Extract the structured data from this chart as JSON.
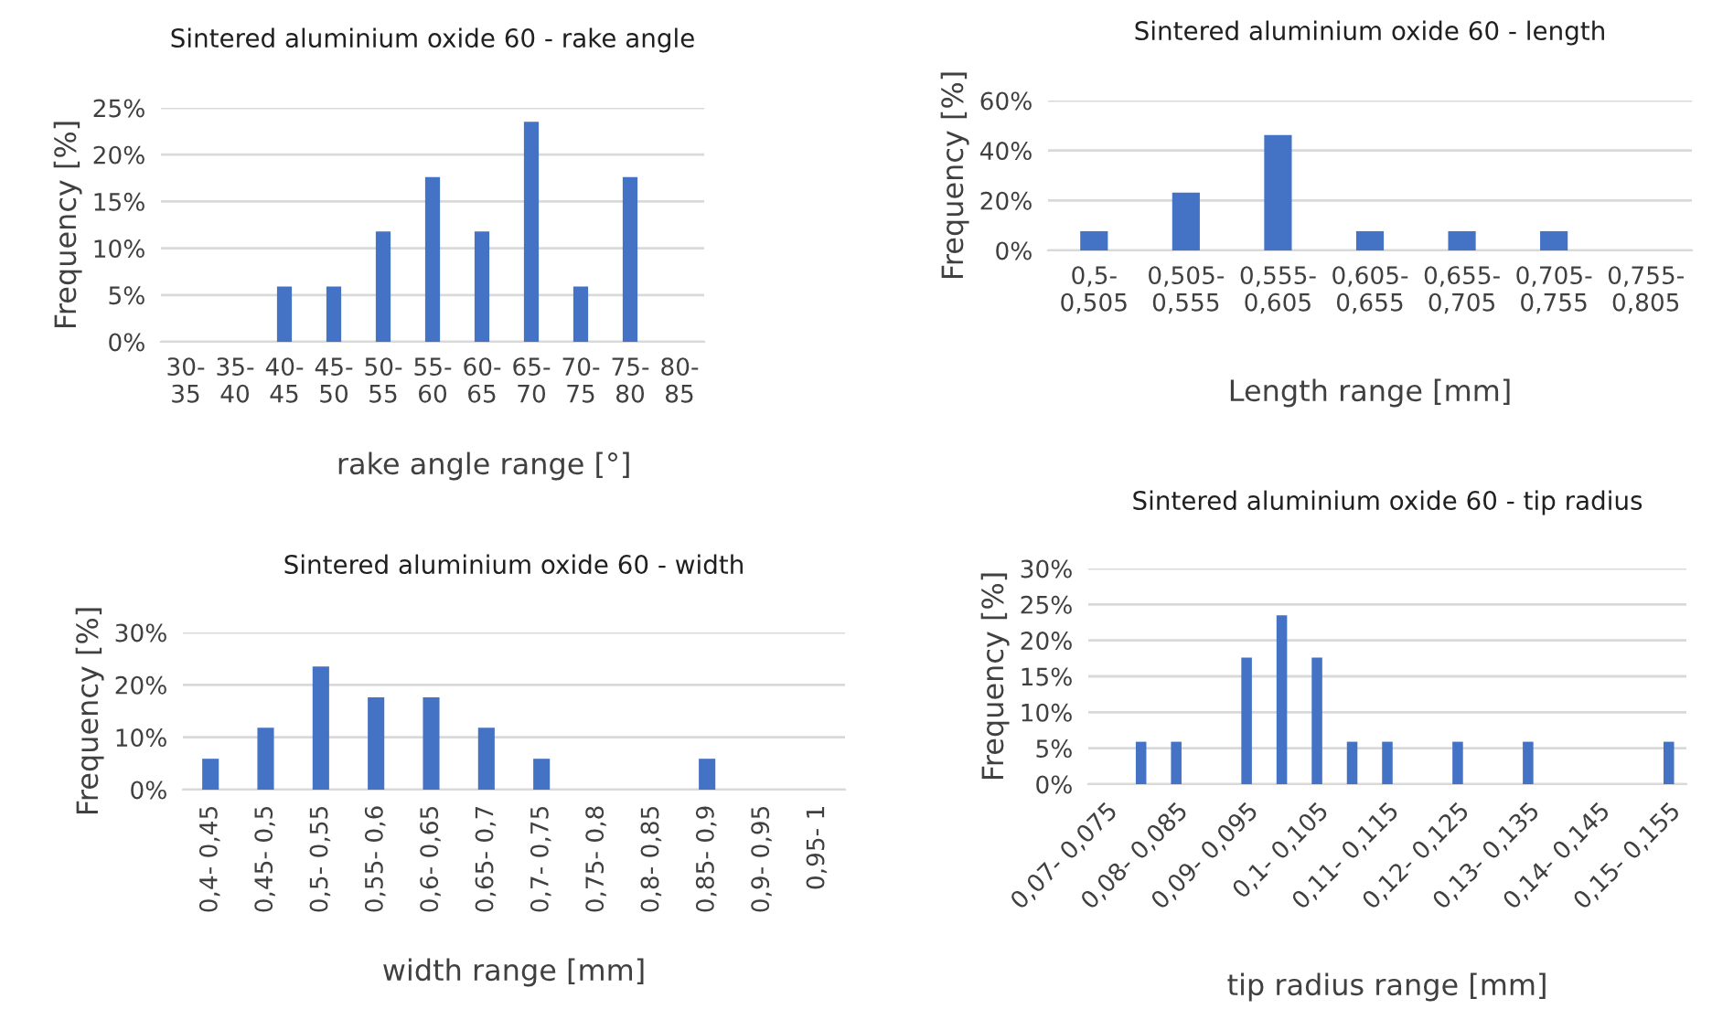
{
  "chart_data": [
    {
      "type": "bar",
      "title": "Sintered aluminium oxide 60 - rake angle",
      "xlabel": "rake angle range [°]",
      "ylabel": "Frequency [%]",
      "color": "#4472c4",
      "grid": "y",
      "categories": [
        "30-35",
        "35-40",
        "40-45",
        "45-50",
        "50-55",
        "55-60",
        "60-65",
        "65-70",
        "70-75",
        "75-80",
        "80-85"
      ],
      "values": [
        0,
        0,
        5.9,
        5.9,
        11.8,
        17.6,
        11.8,
        23.5,
        5.9,
        17.6,
        0
      ],
      "ylim": [
        0,
        25
      ],
      "yticks": [
        {
          "value": 0,
          "label": "0%"
        },
        {
          "value": 5,
          "label": "5%"
        },
        {
          "value": 10,
          "label": "10%"
        },
        {
          "value": 15,
          "label": "15%"
        },
        {
          "value": 20,
          "label": "20%"
        },
        {
          "value": 25,
          "label": "25%"
        }
      ]
    },
    {
      "type": "bar",
      "title": "Sintered aluminium oxide 60 - length",
      "xlabel": "Length range [mm]",
      "ylabel": "Frequency [%]",
      "color": "#4472c4",
      "grid": "y",
      "categories": [
        "0,5-0,505",
        "0,505-0,555",
        "0,555-0,605",
        "0,605-0,655",
        "0,655-0,705",
        "0,705-0,755",
        "0,755-0,805"
      ],
      "values": [
        7.7,
        23.1,
        46.2,
        7.7,
        7.7,
        7.7,
        0
      ],
      "ylim": [
        0,
        60
      ],
      "yticks": [
        {
          "value": 0,
          "label": "0%"
        },
        {
          "value": 20,
          "label": "20%"
        },
        {
          "value": 40,
          "label": "40%"
        },
        {
          "value": 60,
          "label": "60%"
        }
      ]
    },
    {
      "type": "bar",
      "title": "Sintered aluminium oxide 60 - width",
      "xlabel": "width range [mm]",
      "ylabel": "Frequency [%]",
      "color": "#4472c4",
      "grid": "y",
      "categories": [
        "0,4- 0,45",
        "0,45- 0,5",
        "0,5- 0,55",
        "0,55- 0,6",
        "0,6- 0,65",
        "0,65- 0,7",
        "0,7- 0,75",
        "0,75- 0,8",
        "0,8- 0,85",
        "0,85- 0,9",
        "0,9- 0,95",
        "0,95- 1"
      ],
      "values": [
        5.9,
        11.8,
        23.5,
        17.6,
        17.6,
        11.8,
        5.9,
        0,
        0,
        5.9,
        0,
        0
      ],
      "ylim": [
        0,
        30
      ],
      "yticks": [
        {
          "value": 0,
          "label": "0%"
        },
        {
          "value": 10,
          "label": "10%"
        },
        {
          "value": 20,
          "label": "20%"
        },
        {
          "value": 30,
          "label": "30%"
        }
      ]
    },
    {
      "type": "bar",
      "title": "Sintered aluminium oxide 60 - tip radius",
      "xlabel": "tip radius range [mm]",
      "ylabel": "Frequency [%]",
      "color": "#4472c4",
      "grid": "y",
      "categories": [
        "0,07- 0,075",
        null,
        "0,08- 0,085",
        null,
        "0,09- 0,095",
        null,
        "0,1- 0,105",
        null,
        "0,11- 0,115",
        null,
        "0,12- 0,125",
        null,
        "0,13- 0,135",
        null,
        "0,14- 0,145",
        null,
        "0,15- 0,155"
      ],
      "values": [
        0,
        5.9,
        5.9,
        0,
        17.6,
        23.5,
        17.6,
        5.9,
        5.9,
        0,
        5.9,
        0,
        5.9,
        0,
        0,
        0,
        5.9
      ],
      "ylim": [
        0,
        30
      ],
      "yticks": [
        {
          "value": 0,
          "label": "0%"
        },
        {
          "value": 5,
          "label": "5%"
        },
        {
          "value": 10,
          "label": "10%"
        },
        {
          "value": 15,
          "label": "15%"
        },
        {
          "value": 20,
          "label": "20%"
        },
        {
          "value": 25,
          "label": "25%"
        },
        {
          "value": 30,
          "label": "30%"
        }
      ]
    }
  ]
}
